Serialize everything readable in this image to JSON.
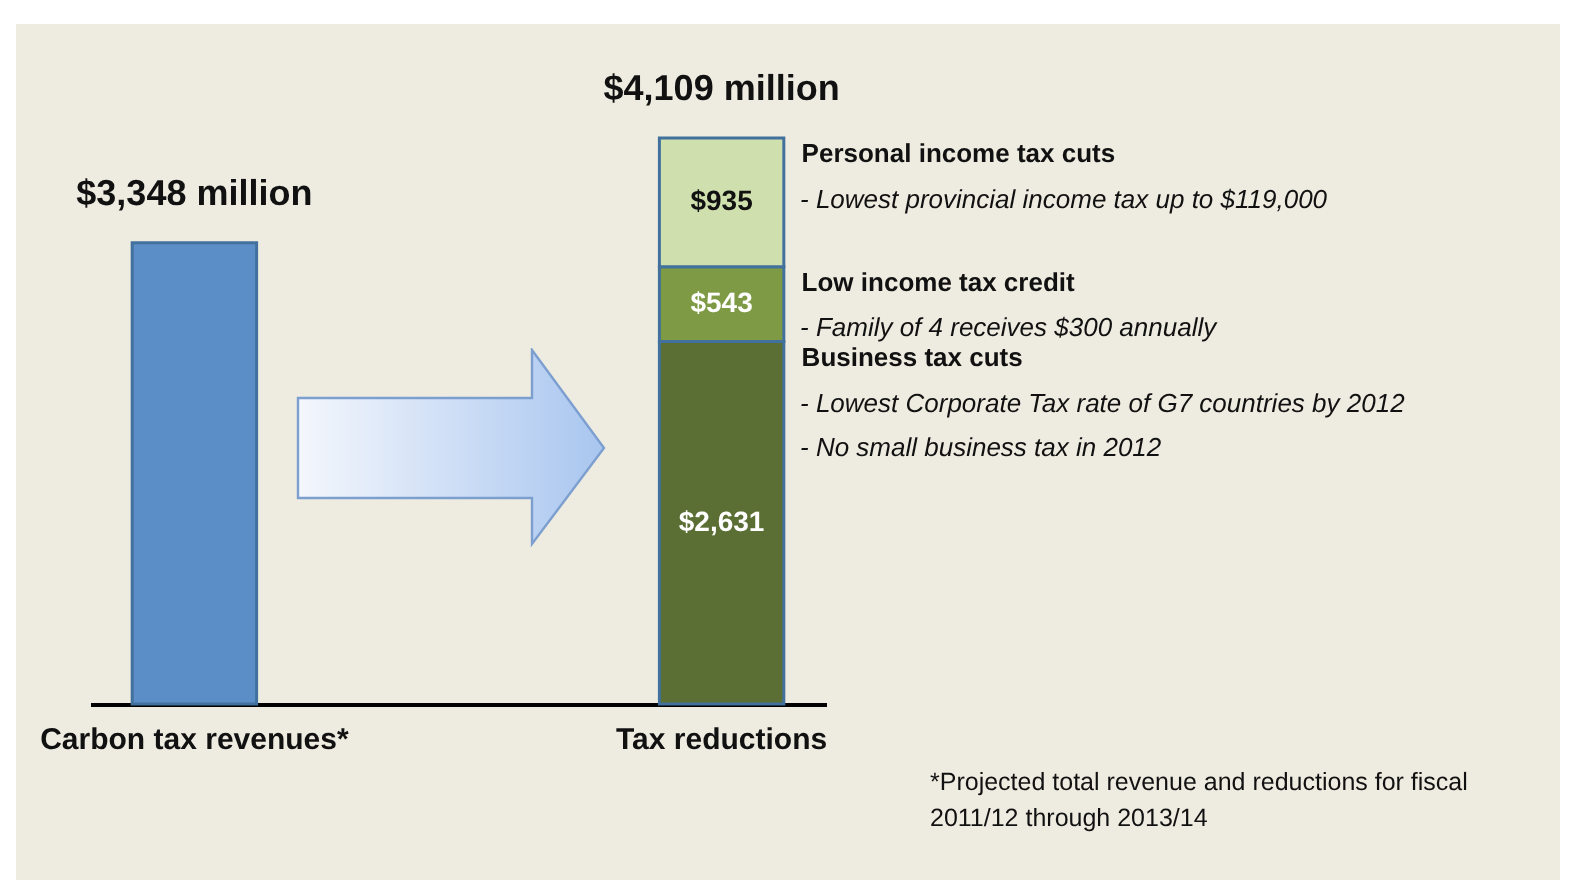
{
  "chart_data": {
    "type": "bar",
    "stacked": true,
    "categories": [
      "Carbon tax revenues*",
      "Tax reductions"
    ],
    "series": [
      {
        "color": "#5b8ec6",
        "values": [
          3348,
          null
        ]
      },
      {
        "name": "Business tax cuts",
        "color": "#5b6e34",
        "values": [
          null,
          2631
        ],
        "value_labels": [
          null,
          "$2,631"
        ]
      },
      {
        "name": "Low income tax credit",
        "color": "#7e9a45",
        "values": [
          null,
          543
        ],
        "value_labels": [
          null,
          "$543"
        ]
      },
      {
        "name": "Personal income tax cuts",
        "color": "#cfdfae",
        "values": [
          null,
          935
        ],
        "value_labels": [
          null,
          "$935"
        ]
      }
    ],
    "totals": [
      "$3,348 million",
      "$4,109 million"
    ],
    "annotations": [
      "- Lowest provincial income tax up to $119,000",
      "- Family of 4 receives $300 annually",
      "- Lowest Corporate Tax rate of G7 countries by 2012",
      "- No small business tax in 2012",
      "*Projected total revenue and reductions for fiscal 2011/12 through 2013/14"
    ]
  }
}
